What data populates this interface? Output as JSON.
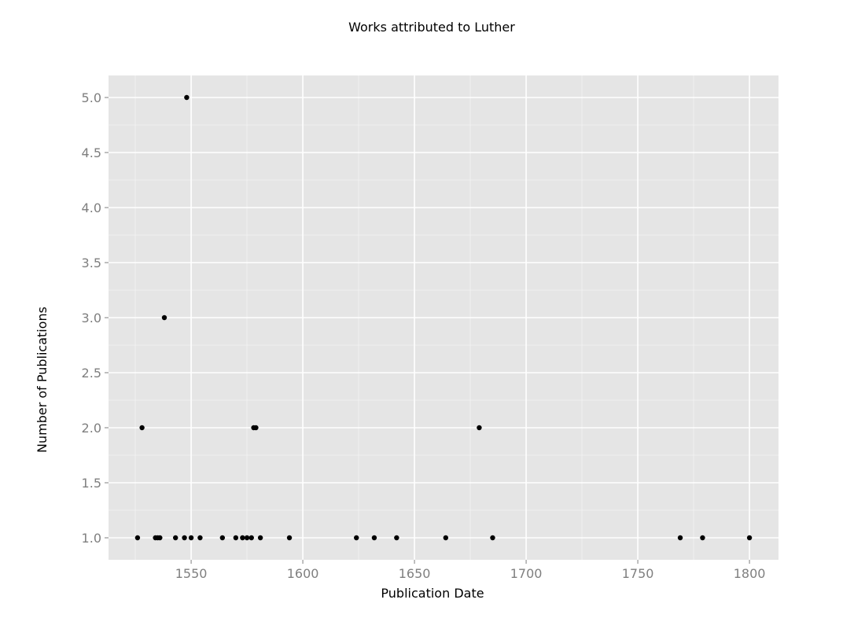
{
  "chart_data": {
    "type": "scatter",
    "title": "Works attributed to Luther",
    "xlabel": "Publication Date",
    "ylabel": "Number of Publications",
    "xlim": [
      1513,
      1813
    ],
    "ylim": [
      0.8,
      5.2
    ],
    "xticks": [
      "1550",
      "1600",
      "1650",
      "1700",
      "1750",
      "1800"
    ],
    "yticks": [
      "1.0",
      "1.5",
      "2.0",
      "2.5",
      "3.0",
      "3.5",
      "4.0",
      "4.5",
      "5.0"
    ],
    "grid": true,
    "points": [
      {
        "x": 1526,
        "y": 1
      },
      {
        "x": 1528,
        "y": 2
      },
      {
        "x": 1534,
        "y": 1
      },
      {
        "x": 1535,
        "y": 1
      },
      {
        "x": 1536,
        "y": 1
      },
      {
        "x": 1538,
        "y": 3
      },
      {
        "x": 1543,
        "y": 1
      },
      {
        "x": 1547,
        "y": 1
      },
      {
        "x": 1548,
        "y": 5
      },
      {
        "x": 1550,
        "y": 1
      },
      {
        "x": 1554,
        "y": 1
      },
      {
        "x": 1564,
        "y": 1
      },
      {
        "x": 1570,
        "y": 1
      },
      {
        "x": 1573,
        "y": 1
      },
      {
        "x": 1575,
        "y": 1
      },
      {
        "x": 1577,
        "y": 1
      },
      {
        "x": 1578,
        "y": 2
      },
      {
        "x": 1579,
        "y": 2
      },
      {
        "x": 1581,
        "y": 1
      },
      {
        "x": 1594,
        "y": 1
      },
      {
        "x": 1624,
        "y": 1
      },
      {
        "x": 1632,
        "y": 1
      },
      {
        "x": 1642,
        "y": 1
      },
      {
        "x": 1664,
        "y": 1
      },
      {
        "x": 1679,
        "y": 2
      },
      {
        "x": 1685,
        "y": 1
      },
      {
        "x": 1769,
        "y": 1
      },
      {
        "x": 1779,
        "y": 1
      },
      {
        "x": 1800,
        "y": 1
      }
    ]
  }
}
